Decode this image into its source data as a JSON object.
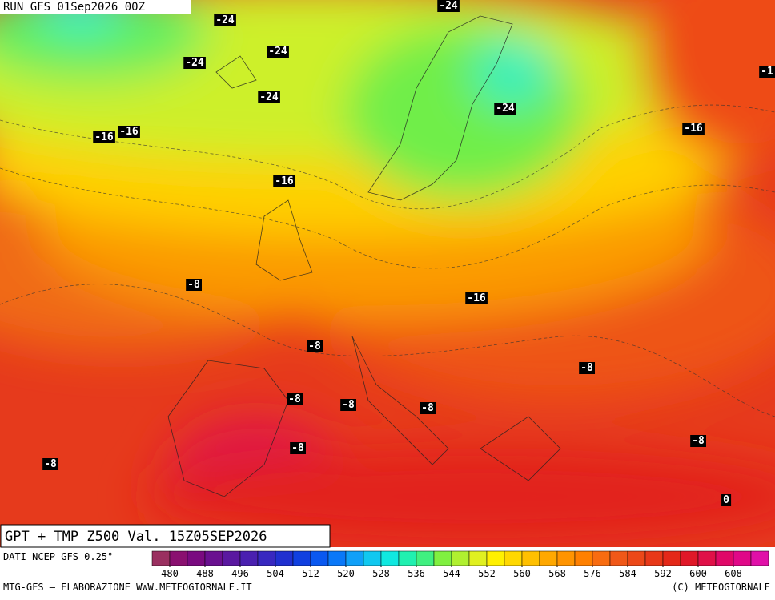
{
  "header": {
    "run": "RUN GFS 01Sep2026 00Z"
  },
  "map": {
    "title": "GPT + TMP Z500 Val. 15Z05SEP2026",
    "isotherm_labels": [
      "-24",
      "-24",
      "-24",
      "-24",
      "-24",
      "-24",
      "-16",
      "-16",
      "-16",
      "-16",
      "-16",
      "-8",
      "-8",
      "-8",
      "-8",
      "-8",
      "-8",
      "-8",
      "-8",
      "-8",
      "0",
      "-1"
    ]
  },
  "legend": {
    "source": "DATI NCEP GFS 0.25°",
    "colors": [
      "#9a3060",
      "#8a1070",
      "#7a0a80",
      "#6a1090",
      "#5a18a0",
      "#4a20b0",
      "#3828c0",
      "#2030d0",
      "#1040e0",
      "#0a58f0",
      "#0a78f8",
      "#10a0f8",
      "#10c8f0",
      "#10e8e0",
      "#20f0b0",
      "#40f080",
      "#80f040",
      "#b0f030",
      "#e0f020",
      "#fff000",
      "#ffd800",
      "#ffc000",
      "#ffa800",
      "#ff9400",
      "#ff8000",
      "#f86c10",
      "#f05818",
      "#ec4818",
      "#e83818",
      "#e42818",
      "#e01828",
      "#e01048",
      "#e00868",
      "#e00888",
      "#e010a8"
    ],
    "ticks": [
      480,
      488,
      496,
      504,
      512,
      520,
      528,
      536,
      544,
      552,
      560,
      568,
      576,
      584,
      592,
      600,
      608
    ]
  },
  "footer": {
    "left": "MTG-GFS — ELABORAZIONE WWW.METEOGIORNALE.IT",
    "right": "(C) METEOGIORNALE"
  }
}
